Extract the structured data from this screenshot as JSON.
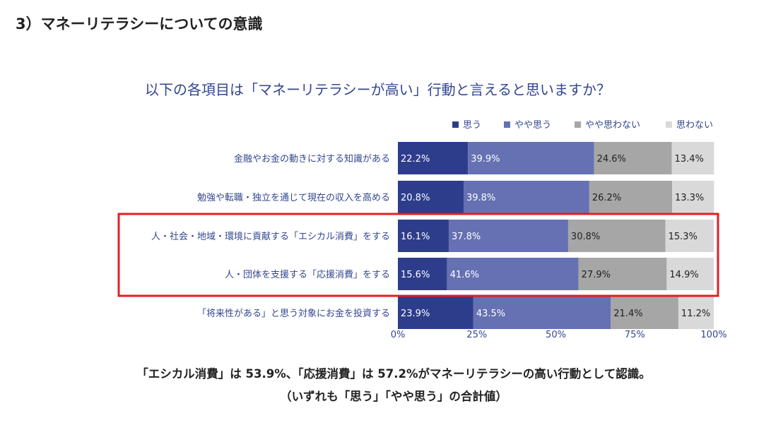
{
  "heading": "3）マネーリテラシーについての意識",
  "colors": {
    "series": [
      "#2e3d8b",
      "#6571b2",
      "#a6a6a6",
      "#d9d9d9"
    ],
    "bar_label_text": [
      "#ffffff",
      "#ffffff",
      "#222222",
      "#222222"
    ],
    "highlight": "#e02020",
    "text_accent": "#33468f"
  },
  "chart_data": {
    "type": "bar",
    "orientation": "horizontal",
    "stacked": "100%",
    "title": "以下の各項目は「マネーリテラシーが高い」行動と言えると思いますか？",
    "legend_position": "top-right",
    "categories": [
      "金融やお金の動きに対する知識がある",
      "勉強や転職・独立を通じて現在の収入を高める",
      "人・社会・地域・環境に貢献する「エシカル消費」をする",
      "人・団体を支援する「応援消費」をする",
      "「将来性がある」と思う対象にお金を投資する"
    ],
    "series": [
      {
        "name": "思う",
        "values": [
          22.2,
          20.8,
          16.1,
          15.6,
          23.9
        ],
        "labels": [
          "22.2%",
          "20.8%",
          "16.1%",
          "15.6%",
          "23.9%"
        ]
      },
      {
        "name": "やや思う",
        "values": [
          39.9,
          39.8,
          37.8,
          41.6,
          43.5
        ],
        "labels": [
          "39.9%",
          "39.8%",
          "37.8%",
          "41.6%",
          "43.5%"
        ]
      },
      {
        "name": "やや思わない",
        "values": [
          24.6,
          26.2,
          30.8,
          27.9,
          21.4
        ],
        "labels": [
          "24.6%",
          "26.2%",
          "30.8%",
          "27.9%",
          "21.4%"
        ]
      },
      {
        "name": "思わない",
        "values": [
          13.4,
          13.3,
          15.3,
          14.9,
          11.2
        ],
        "labels": [
          "13.4%",
          "13.3%",
          "15.3%",
          "14.9%",
          "11.2%"
        ]
      }
    ],
    "x_ticks": [
      "0%",
      "25%",
      "50%",
      "75%",
      "100%"
    ],
    "xlim": [
      0,
      100
    ],
    "grid": false,
    "highlighted_categories": [
      2,
      3
    ]
  },
  "conclusion": {
    "line1": "「エシカル消費」は 53.9%、「応援消費」は 57.2%がマネーリテラシーの高い行動として認識。",
    "line2": "（いずれも「思う」「やや思う」の合計値）"
  }
}
